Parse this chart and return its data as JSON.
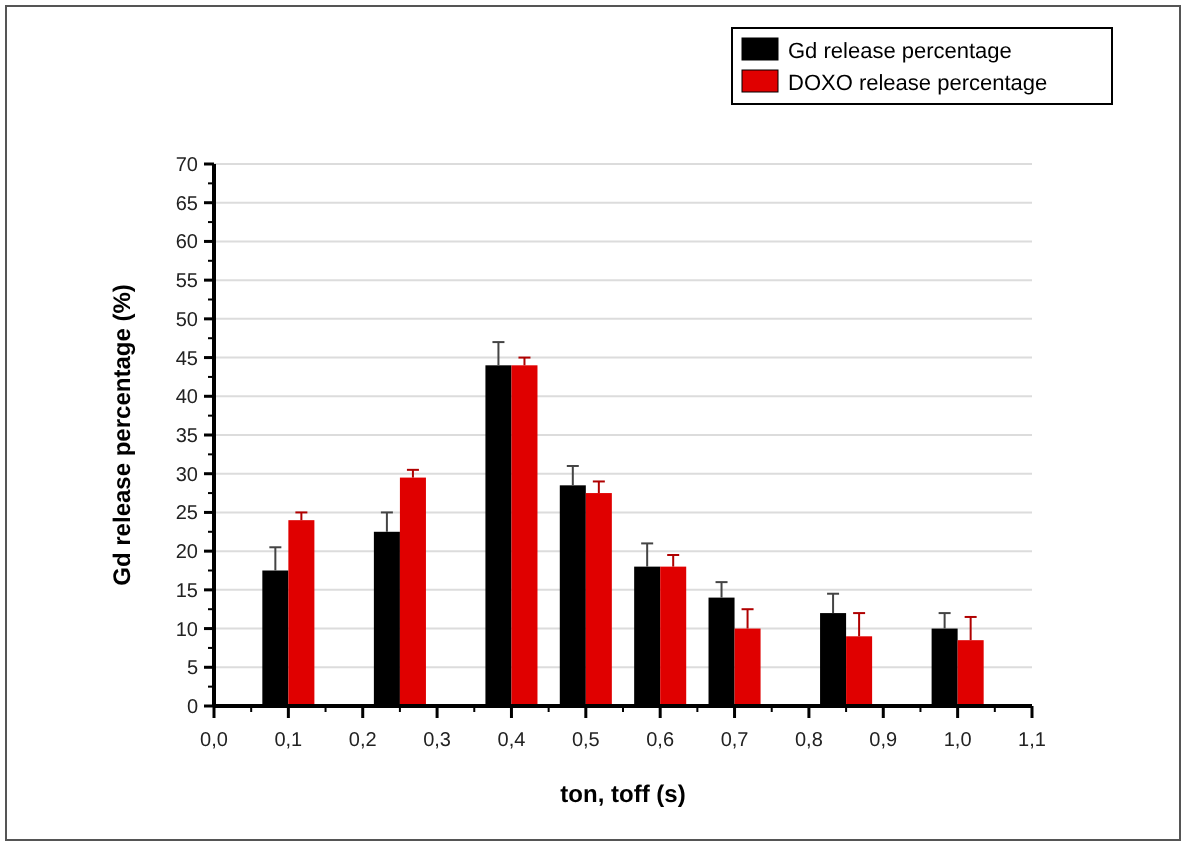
{
  "chart_data": {
    "type": "bar",
    "xlabel": "ton, toff (s)",
    "ylabel": "Gd release percentage (%)",
    "x": [
      0.1,
      0.25,
      0.4,
      0.5,
      0.6,
      0.7,
      0.85,
      1.0
    ],
    "series": [
      {
        "name": "Gd release percentage",
        "color": "#000000",
        "values": [
          17.5,
          22.5,
          44,
          28.5,
          18,
          14,
          12,
          10
        ],
        "errors": [
          3,
          2.5,
          3,
          2.5,
          3,
          2,
          2.5,
          2
        ]
      },
      {
        "name": "DOXO release percentage",
        "color": "#e00000",
        "values": [
          24,
          29.5,
          44,
          27.5,
          18,
          10,
          9,
          8.5
        ],
        "errors": [
          1,
          1,
          1,
          1.5,
          1.5,
          2.5,
          3,
          3
        ]
      }
    ],
    "xlim": [
      0,
      1.1
    ],
    "xticks": [
      {
        "value": 0,
        "label": "0,0"
      },
      {
        "value": 0.1,
        "label": "0,1"
      },
      {
        "value": 0.2,
        "label": "0,2"
      },
      {
        "value": 0.3,
        "label": "0,3"
      },
      {
        "value": 0.4,
        "label": "0,4"
      },
      {
        "value": 0.5,
        "label": "0,5"
      },
      {
        "value": 0.6,
        "label": "0,6"
      },
      {
        "value": 0.7,
        "label": "0,7"
      },
      {
        "value": 0.8,
        "label": "0,8"
      },
      {
        "value": 0.9,
        "label": "0,9"
      },
      {
        "value": 1.0,
        "label": "1,0"
      },
      {
        "value": 1.1,
        "label": "1,1"
      }
    ],
    "ylim": [
      0,
      70
    ],
    "yticks": [
      0,
      5,
      10,
      15,
      20,
      25,
      30,
      35,
      40,
      45,
      50,
      55,
      60,
      65,
      70
    ],
    "grid": "y",
    "legend": "top right"
  }
}
